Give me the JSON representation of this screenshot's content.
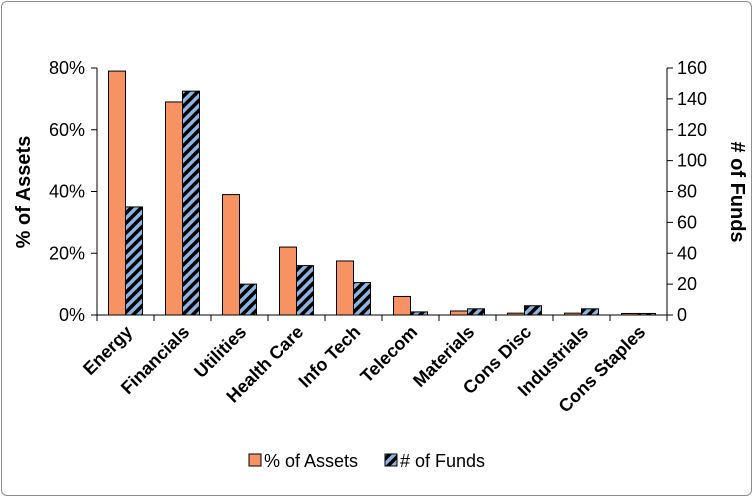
{
  "chart_data": {
    "type": "bar",
    "categories": [
      "Energy",
      "Financials",
      "Utilities",
      "Health Care",
      "Info Tech",
      "Telecom",
      "Materials",
      "Cons Disc",
      "Industrials",
      "Cons Staples"
    ],
    "series": [
      {
        "name": "% of Assets",
        "axis": "left",
        "values": [
          0.79,
          0.69,
          0.39,
          0.22,
          0.175,
          0.06,
          0.013,
          0.006,
          0.006,
          0.005
        ],
        "color": "#F79263",
        "pattern": "solid"
      },
      {
        "name": "# of Funds",
        "axis": "right",
        "values": [
          70,
          145,
          20,
          32,
          21,
          2,
          4,
          6,
          4,
          1
        ],
        "color": "#8DB4E2",
        "pattern": "black-diagonal-stripes"
      }
    ],
    "ylabel": "% of Assets",
    "y2label": "# of Funds",
    "ylim": [
      0,
      0.8
    ],
    "y2lim": [
      0,
      160
    ],
    "yticks": [
      "0%",
      "20%",
      "40%",
      "60%",
      "80%"
    ],
    "y2ticks": [
      "0",
      "20",
      "40",
      "60",
      "80",
      "100",
      "120",
      "140",
      "160"
    ],
    "grid": false,
    "legend": "bottom"
  }
}
